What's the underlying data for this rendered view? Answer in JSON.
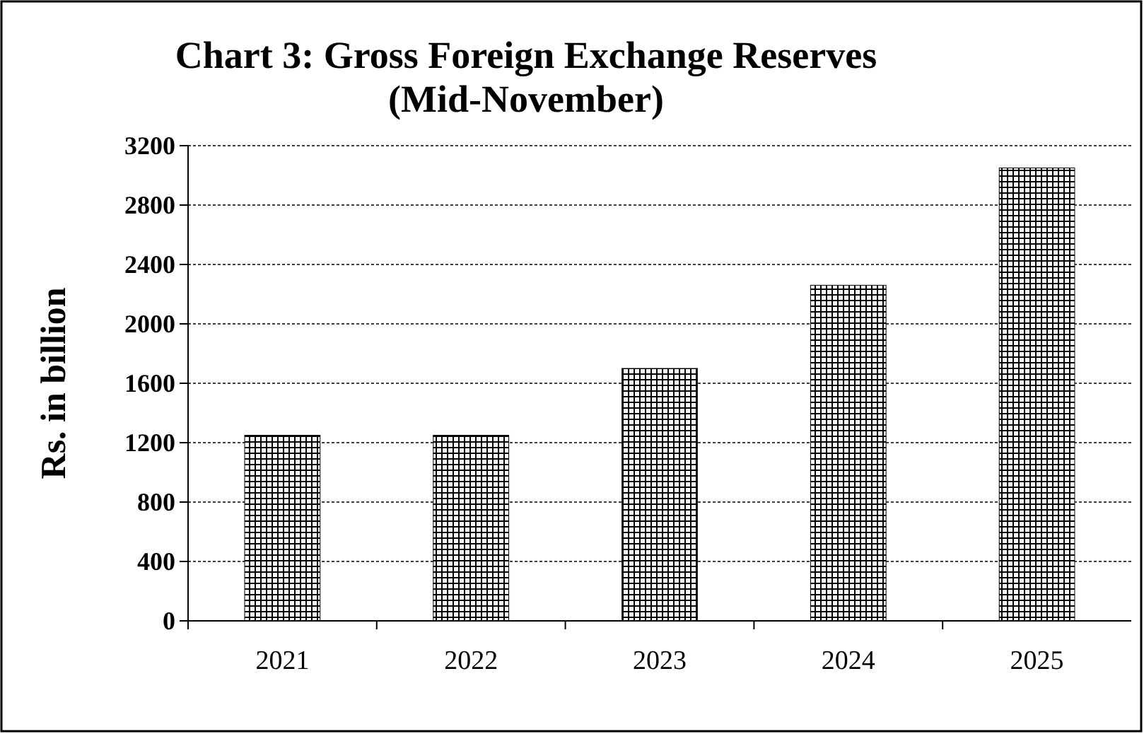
{
  "chart_data": {
    "type": "bar",
    "title": "Chart  3: Gross Foreign Exchange Reserves\n(Mid-November)",
    "ylabel": "Rs. in billion",
    "categories": [
      "2021",
      "2022",
      "2023",
      "2024",
      "2025"
    ],
    "values": [
      1250,
      1250,
      1700,
      2260,
      3050
    ],
    "color": "#000000",
    "ylim": [
      0,
      3200
    ],
    "yticks": [
      0,
      400,
      800,
      1200,
      1600,
      2000,
      2400,
      2800,
      3200
    ],
    "grid": "y"
  }
}
